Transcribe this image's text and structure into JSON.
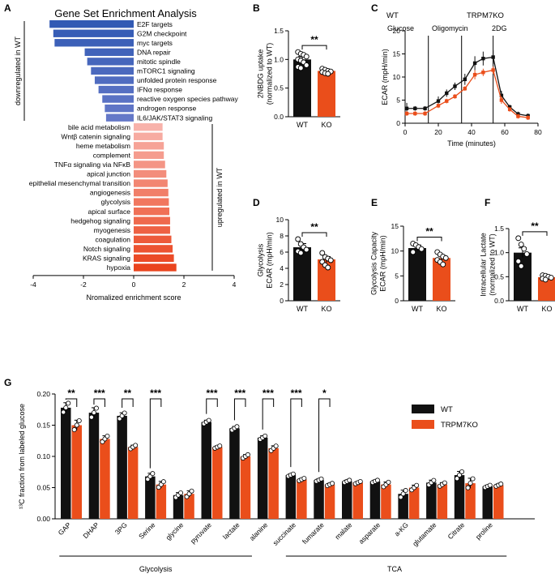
{
  "colors": {
    "wt": "#111111",
    "ko": "#ea4e1b",
    "down": "#4366c0",
    "up": "#ee7a5e",
    "ko_label": "#ea4e1b"
  },
  "chart_data": [
    {
      "panel": "A",
      "type": "bar",
      "orientation": "horizontal",
      "title": "Gene Set Enrichment Analysis",
      "xlabel": "Nromalized enrichment score",
      "xlim": [
        -4,
        4
      ],
      "xticks": [
        "-4",
        "-2",
        "0",
        "2",
        "4"
      ],
      "down_label": "downregulated in WT",
      "up_label": "upregulated in WT",
      "down": [
        {
          "name": "E2F targets",
          "value": -3.35
        },
        {
          "name": "G2M checkpoint",
          "value": -3.2
        },
        {
          "name": "myc targets",
          "value": -3.15
        },
        {
          "name": "DNA repair",
          "value": -1.95
        },
        {
          "name": "mitotic spindle",
          "value": -1.85
        },
        {
          "name": "mTORC1 signaling",
          "value": -1.7
        },
        {
          "name": "unfolded protein response",
          "value": -1.55
        },
        {
          "name": "IFNα response",
          "value": -1.4
        },
        {
          "name": "reactive oxygen species pathway",
          "value": -1.25
        },
        {
          "name": "androgen response",
          "value": -1.15
        },
        {
          "name": "IL6/JAK/STAT3 signaling",
          "value": -1.1
        }
      ],
      "up": [
        {
          "name": "bile acid metabolism",
          "value": 1.15
        },
        {
          "name": "Wntβ catenin signaling",
          "value": 1.15
        },
        {
          "name": "heme metabolism",
          "value": 1.2
        },
        {
          "name": "complement",
          "value": 1.2
        },
        {
          "name": "TNFα signaling via NFκB",
          "value": 1.25
        },
        {
          "name": "apical junction",
          "value": 1.3
        },
        {
          "name": "epithelial mesenchymal transition",
          "value": 1.35
        },
        {
          "name": "angiogenesis",
          "value": 1.38
        },
        {
          "name": "glycolysis",
          "value": 1.4
        },
        {
          "name": "apical surface",
          "value": 1.42
        },
        {
          "name": "hedgehog signaling",
          "value": 1.45
        },
        {
          "name": "myogenesis",
          "value": 1.45
        },
        {
          "name": "coagulation",
          "value": 1.5
        },
        {
          "name": "Notch signaling",
          "value": 1.55
        },
        {
          "name": "KRAS signaling",
          "value": 1.6
        },
        {
          "name": "hypoxia",
          "value": 1.7
        }
      ]
    },
    {
      "panel": "B",
      "type": "bar",
      "ylabel": "2NBDG uptake\n(normalized to WT)",
      "ylim": [
        0,
        1.5
      ],
      "yticks": [
        "0.0",
        "0.5",
        "1.0",
        "1.5"
      ],
      "categories": [
        "WT",
        "KO"
      ],
      "values": [
        1.0,
        0.8
      ],
      "errors": [
        0.05,
        0.03
      ],
      "sig": "**",
      "points": [
        [
          1.13,
          1.1,
          1.08,
          1.05,
          1.0,
          0.98,
          0.95,
          0.9,
          0.87,
          0.85
        ],
        [
          0.84,
          0.82,
          0.8,
          0.79,
          0.78,
          0.76,
          0.75
        ]
      ]
    },
    {
      "panel": "C",
      "type": "line",
      "xlabel": "Time (minutes)",
      "ylabel": "ECAR (mpH/min)",
      "xlim": [
        0,
        80
      ],
      "ylim": [
        0,
        20
      ],
      "xticks": [
        "0",
        "20",
        "40",
        "60",
        "80"
      ],
      "yticks": [
        "0",
        "5",
        "10",
        "15",
        "20"
      ],
      "legend": [
        "WT",
        "TRPM7KO"
      ],
      "annotations": [
        "Glucose",
        "Oligomycin",
        "2DG"
      ],
      "injection_times": [
        14,
        34,
        53
      ],
      "series": [
        {
          "name": "WT",
          "x": [
            1,
            6,
            12,
            20,
            25,
            30,
            36,
            42,
            47,
            53,
            58,
            63,
            68,
            74
          ],
          "y": [
            3.2,
            3.2,
            3.2,
            4.8,
            6.5,
            8.0,
            9.5,
            13.0,
            14.0,
            14.3,
            6.0,
            3.5,
            2.0,
            1.6
          ],
          "err": [
            1.2,
            0.5,
            0.5,
            1.0,
            0.8,
            0.8,
            1.2,
            1.5,
            1.5,
            1.5,
            1.0,
            0.5,
            0.5,
            0.5
          ]
        },
        {
          "name": "TRPM7KO",
          "x": [
            1,
            6,
            12,
            20,
            25,
            30,
            36,
            42,
            47,
            53,
            58,
            63,
            68,
            74
          ],
          "y": [
            2.1,
            2.1,
            2.1,
            3.8,
            4.8,
            5.8,
            7.5,
            10.5,
            11.0,
            11.5,
            5.0,
            3.0,
            1.5,
            1.2
          ],
          "err": [
            0.5,
            0.5,
            0.5,
            0.5,
            0.5,
            0.5,
            0.5,
            1.0,
            0.8,
            0.8,
            0.8,
            0.5,
            0.5,
            0.5
          ]
        }
      ]
    },
    {
      "panel": "D",
      "type": "bar",
      "ylabel": "Glycolysis\nECAR (mpH/min)",
      "ylim": [
        0,
        10
      ],
      "yticks": [
        "0",
        "2",
        "4",
        "6",
        "8",
        "10"
      ],
      "categories": [
        "WT",
        "KO"
      ],
      "values": [
        6.6,
        5.1
      ],
      "errors": [
        0.45,
        0.35
      ],
      "sig": "**",
      "points": [
        [
          7.6,
          7.0,
          6.6,
          6.3,
          6.1,
          5.9
        ],
        [
          5.9,
          5.4,
          5.2,
          5.0,
          4.8,
          4.4,
          4.1
        ]
      ]
    },
    {
      "panel": "E",
      "type": "bar",
      "ylabel": "Glycolysis Capacity\nECAR (mpH/min)",
      "ylim": [
        0,
        15
      ],
      "yticks": [
        "0",
        "5",
        "10",
        "15"
      ],
      "categories": [
        "WT",
        "KO"
      ],
      "values": [
        10.6,
        8.6
      ],
      "errors": [
        0.6,
        0.45
      ],
      "sig": "**",
      "points": [
        [
          11.5,
          11.2,
          10.8,
          10.4,
          9.8
        ],
        [
          9.8,
          9.3,
          8.9,
          8.6,
          8.2,
          7.8,
          7.3
        ]
      ]
    },
    {
      "panel": "F",
      "type": "bar",
      "ylabel": "Intracellular Lactate\n(normalized to WT)",
      "ylim": [
        0,
        1.5
      ],
      "yticks": [
        "0.0",
        "0.5",
        "1.0",
        "1.5"
      ],
      "categories": [
        "WT",
        "KO"
      ],
      "values": [
        1.0,
        0.49
      ],
      "errors": [
        0.1,
        0.03
      ],
      "sig": "**",
      "points": [
        [
          1.3,
          1.17,
          1.08,
          0.97,
          0.82,
          0.72
        ],
        [
          0.53,
          0.52,
          0.5,
          0.48,
          0.46,
          0.44
        ]
      ]
    },
    {
      "panel": "G",
      "type": "bar",
      "ylabel": "¹³C fraction from labeled glucose",
      "ylim": [
        0,
        0.2
      ],
      "yticks": [
        "0.00",
        "0.05",
        "0.10",
        "0.15",
        "0.20"
      ],
      "legend": [
        "WT",
        "TRPM7KO"
      ],
      "group_labels": [
        "Glycolysis",
        "TCA"
      ],
      "categories": [
        "GAP",
        "DHAP",
        "3PG",
        "Serine",
        "glycine",
        "pyruvate",
        "lactate",
        "alanine",
        "succinate",
        "fumarate",
        "malate",
        "asparate",
        "a-KG",
        "glutamate",
        "Citrate",
        "proline"
      ],
      "series": [
        {
          "name": "WT",
          "values": [
            0.178,
            0.17,
            0.165,
            0.068,
            0.038,
            0.155,
            0.145,
            0.13,
            0.07,
            0.062,
            0.06,
            0.06,
            0.04,
            0.058,
            0.07,
            0.052
          ],
          "errors": [
            0.008,
            0.008,
            0.005,
            0.005,
            0.004,
            0.003,
            0.003,
            0.003,
            0.002,
            0.002,
            0.002,
            0.002,
            0.006,
            0.004,
            0.006,
            0.002
          ]
        },
        {
          "name": "TRPM7KO",
          "values": [
            0.15,
            0.128,
            0.115,
            0.055,
            0.04,
            0.115,
            0.1,
            0.113,
            0.063,
            0.055,
            0.058,
            0.055,
            0.05,
            0.055,
            0.057,
            0.054
          ],
          "errors": [
            0.008,
            0.005,
            0.003,
            0.005,
            0.005,
            0.002,
            0.003,
            0.004,
            0.002,
            0.002,
            0.002,
            0.004,
            0.004,
            0.003,
            0.008,
            0.002
          ]
        }
      ],
      "significance": [
        {
          "index": 0,
          "label": "**"
        },
        {
          "index": 1,
          "label": "***"
        },
        {
          "index": 2,
          "label": "**"
        },
        {
          "index": 3,
          "label": "***"
        },
        {
          "index": 5,
          "label": "***"
        },
        {
          "index": 6,
          "label": "***"
        },
        {
          "index": 7,
          "label": "***"
        },
        {
          "index": 8,
          "label": "***"
        },
        {
          "index": 9,
          "label": "*"
        }
      ]
    }
  ],
  "panel_letters": [
    "A",
    "B",
    "C",
    "D",
    "E",
    "F",
    "G"
  ]
}
